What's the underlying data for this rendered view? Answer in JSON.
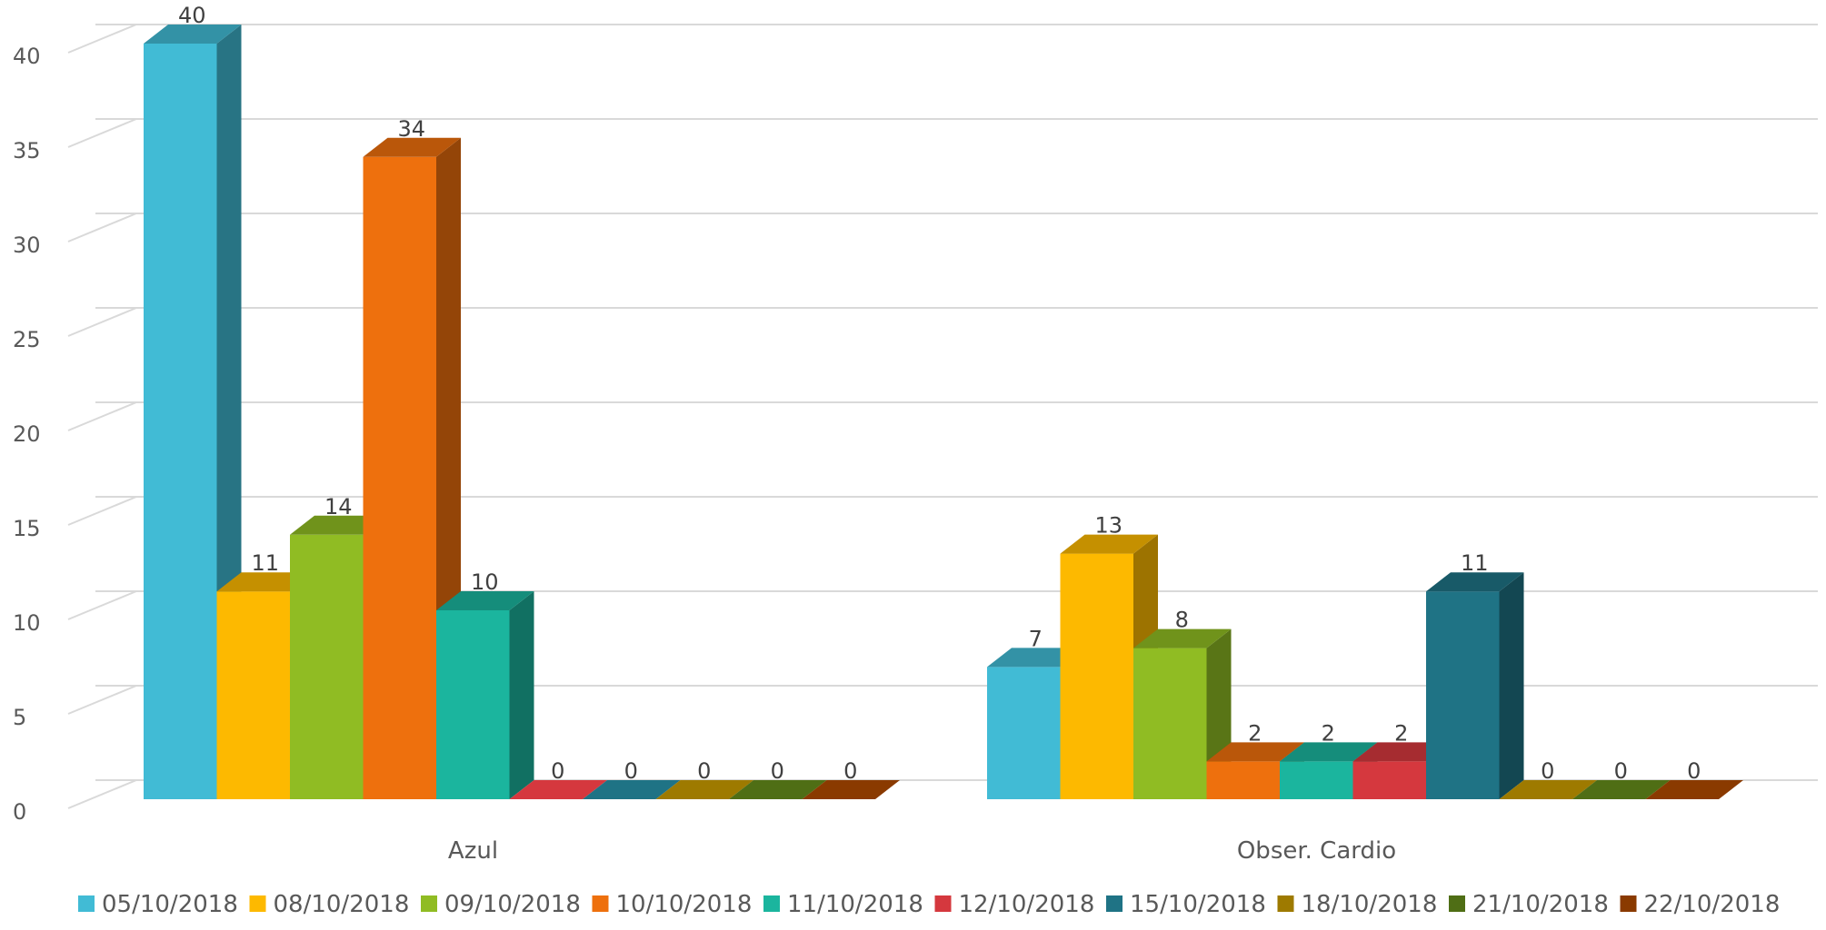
{
  "chart_data": {
    "type": "bar",
    "title": "",
    "xlabel": "",
    "ylabel": "",
    "categories": [
      "Azul",
      "Obser. Cardio"
    ],
    "ylim": [
      0,
      40
    ],
    "yticks": [
      0,
      5,
      10,
      15,
      20,
      25,
      30,
      35,
      40
    ],
    "grid": true,
    "legend_position": "bottom",
    "style": "3d-clustered-column",
    "series": [
      {
        "name": "05/10/2018",
        "values": [
          40,
          7
        ],
        "color": "#41BBD5"
      },
      {
        "name": "08/10/2018",
        "values": [
          11,
          13
        ],
        "color": "#FDB900"
      },
      {
        "name": "09/10/2018",
        "values": [
          14,
          8
        ],
        "color": "#90BC23"
      },
      {
        "name": "10/10/2018",
        "values": [
          34,
          2
        ],
        "color": "#EE700D"
      },
      {
        "name": "11/10/2018",
        "values": [
          10,
          2
        ],
        "color": "#1BB59E"
      },
      {
        "name": "12/10/2018",
        "values": [
          0,
          2
        ],
        "color": "#D5383E"
      },
      {
        "name": "15/10/2018",
        "values": [
          0,
          11
        ],
        "color": "#1F7385"
      },
      {
        "name": "18/10/2018",
        "values": [
          0,
          0
        ],
        "color": "#9E7A00"
      },
      {
        "name": "21/10/2018",
        "values": [
          0,
          0
        ],
        "color": "#4F6E15"
      },
      {
        "name": "22/10/2018",
        "values": [
          0,
          0
        ],
        "color": "#8A3A00"
      }
    ]
  }
}
